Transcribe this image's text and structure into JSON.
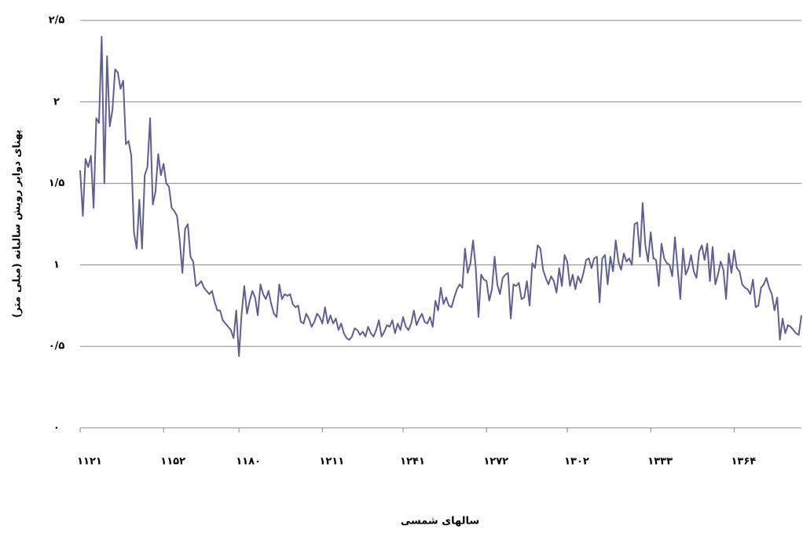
{
  "chart_data": {
    "type": "line",
    "x_label": "سالهای شمسی",
    "y_label": "پهنای دوایر رویش سالیانه (میلی متر)",
    "x": [
      1121,
      1122,
      1123,
      1124,
      1125,
      1126,
      1127,
      1128,
      1129,
      1130,
      1131,
      1132,
      1133,
      1134,
      1135,
      1136,
      1137,
      1138,
      1139,
      1140,
      1141,
      1142,
      1143,
      1144,
      1145,
      1146,
      1147,
      1148,
      1149,
      1150,
      1151,
      1152,
      1153,
      1154,
      1155,
      1156,
      1157,
      1158,
      1159,
      1160,
      1161,
      1162,
      1163,
      1164,
      1165,
      1166,
      1167,
      1168,
      1169,
      1170,
      1171,
      1172,
      1173,
      1174,
      1175,
      1176,
      1177,
      1178,
      1179,
      1180,
      1181,
      1182,
      1183,
      1184,
      1185,
      1186,
      1187,
      1188,
      1189,
      1190,
      1191,
      1192,
      1193,
      1194,
      1195,
      1196,
      1197,
      1198,
      1199,
      1200,
      1201,
      1202,
      1203,
      1204,
      1205,
      1206,
      1207,
      1208,
      1209,
      1210,
      1211,
      1212,
      1213,
      1214,
      1215,
      1216,
      1217,
      1218,
      1219,
      1220,
      1221,
      1222,
      1223,
      1224,
      1225,
      1226,
      1227,
      1228,
      1229,
      1230,
      1231,
      1232,
      1233,
      1234,
      1235,
      1236,
      1237,
      1238,
      1239,
      1240,
      1241,
      1242,
      1243,
      1244,
      1245,
      1246,
      1247,
      1248,
      1249,
      1250,
      1251,
      1252,
      1253,
      1254,
      1255,
      1256,
      1257,
      1258,
      1259,
      1260,
      1261,
      1262,
      1263,
      1264,
      1265,
      1266,
      1267,
      1268,
      1269,
      1270,
      1271,
      1272,
      1273,
      1274,
      1275,
      1276,
      1277,
      1278,
      1279,
      1280,
      1281,
      1282,
      1283,
      1284,
      1285,
      1286,
      1287,
      1288,
      1289,
      1290,
      1291,
      1292,
      1293,
      1294,
      1295,
      1296,
      1297,
      1298,
      1299,
      1300,
      1301,
      1302,
      1303,
      1304,
      1305,
      1306,
      1307,
      1308,
      1309,
      1310,
      1311,
      1312,
      1313,
      1314,
      1315,
      1316,
      1317,
      1318,
      1319,
      1320,
      1321,
      1322,
      1323,
      1324,
      1325,
      1326,
      1327,
      1328,
      1329,
      1330,
      1331,
      1332,
      1333,
      1334,
      1335,
      1336,
      1337,
      1338,
      1339,
      1340,
      1341,
      1342,
      1343,
      1344,
      1345,
      1346,
      1347,
      1348,
      1349,
      1350,
      1351,
      1352,
      1353,
      1354,
      1355,
      1356,
      1357,
      1358,
      1359,
      1360,
      1361,
      1362,
      1363,
      1364,
      1365,
      1366,
      1367,
      1368,
      1369,
      1370,
      1371,
      1372,
      1373,
      1374,
      1375,
      1376,
      1377,
      1378,
      1379,
      1380,
      1381,
      1382,
      1383,
      1384,
      1385,
      1386,
      1387,
      1388,
      1389
    ],
    "series": [
      {
        "color": "#5f5f96",
        "values": [
          1.58,
          1.3,
          1.65,
          1.6,
          1.67,
          1.35,
          1.9,
          1.87,
          2.4,
          1.5,
          2.28,
          1.85,
          1.95,
          2.2,
          2.18,
          2.08,
          2.13,
          1.74,
          1.76,
          1.67,
          1.2,
          1.1,
          1.4,
          1.1,
          1.55,
          1.6,
          1.9,
          1.37,
          1.45,
          1.68,
          1.55,
          1.62,
          1.5,
          1.48,
          1.35,
          1.33,
          1.3,
          1.15,
          0.95,
          1.22,
          1.25,
          1.05,
          1.02,
          0.87,
          0.88,
          0.9,
          0.86,
          0.84,
          0.82,
          0.84,
          0.77,
          0.72,
          0.72,
          0.66,
          0.64,
          0.62,
          0.6,
          0.55,
          0.72,
          0.44,
          0.7,
          0.87,
          0.7,
          0.78,
          0.84,
          0.8,
          0.69,
          0.88,
          0.82,
          0.79,
          0.84,
          0.76,
          0.7,
          0.68,
          0.88,
          0.79,
          0.82,
          0.81,
          0.82,
          0.76,
          0.74,
          0.75,
          0.65,
          0.64,
          0.7,
          0.67,
          0.62,
          0.65,
          0.7,
          0.68,
          0.64,
          0.74,
          0.64,
          0.69,
          0.64,
          0.67,
          0.6,
          0.64,
          0.58,
          0.55,
          0.54,
          0.56,
          0.61,
          0.6,
          0.57,
          0.59,
          0.56,
          0.62,
          0.58,
          0.56,
          0.6,
          0.66,
          0.56,
          0.59,
          0.63,
          0.62,
          0.66,
          0.58,
          0.64,
          0.6,
          0.68,
          0.62,
          0.6,
          0.64,
          0.72,
          0.63,
          0.67,
          0.7,
          0.65,
          0.64,
          0.68,
          0.62,
          0.78,
          0.72,
          0.86,
          0.76,
          0.8,
          0.75,
          0.74,
          0.8,
          0.85,
          0.88,
          0.86,
          1.1,
          0.95,
          1.01,
          1.15,
          0.98,
          0.68,
          0.94,
          0.91,
          0.9,
          0.78,
          0.85,
          1.05,
          0.88,
          0.82,
          0.92,
          0.94,
          0.95,
          0.67,
          0.88,
          0.87,
          0.89,
          0.79,
          0.8,
          0.9,
          0.75,
          1.01,
          0.98,
          1.12,
          1.1,
          0.97,
          0.92,
          0.88,
          0.93,
          0.9,
          0.83,
          0.98,
          0.87,
          1.06,
          1.02,
          0.87,
          0.94,
          0.85,
          0.93,
          0.89,
          0.95,
          1.03,
          1.04,
          0.98,
          1.04,
          1.05,
          0.77,
          1.04,
          1.06,
          0.88,
          1.05,
          0.96,
          1.15,
          1.02,
          0.97,
          1.07,
          1.02,
          1.04,
          1.0,
          1.25,
          1.26,
          1.05,
          1.38,
          1.12,
          1.02,
          1.2,
          1.04,
          1.03,
          0.87,
          1.13,
          1.04,
          1.01,
          1.0,
          0.93,
          1.17,
          0.98,
          0.79,
          1.1,
          0.94,
          0.98,
          1.06,
          0.96,
          0.92,
          1.08,
          1.12,
          1.03,
          1.13,
          0.9,
          1.11,
          0.88,
          0.94,
          1.02,
          0.97,
          0.79,
          1.07,
          0.95,
          1.09,
          0.98,
          0.96,
          0.88,
          0.86,
          0.85,
          0.82,
          0.91,
          0.74,
          0.75,
          0.86,
          0.88,
          0.92,
          0.86,
          0.82,
          0.72,
          0.8,
          0.54,
          0.67,
          0.58,
          0.63,
          0.62,
          0.6,
          0.58,
          0.57,
          0.69
        ]
      }
    ],
    "xlim": [
      1121,
      1389
    ],
    "xticks": [
      {
        "value": 1121,
        "label": "۱۱۲۱"
      },
      {
        "value": 1152,
        "label": "۱۱۵۲"
      },
      {
        "value": 1180,
        "label": "۱۱۸۰"
      },
      {
        "value": 1211,
        "label": "۱۲۱۱"
      },
      {
        "value": 1241,
        "label": "۱۲۴۱"
      },
      {
        "value": 1272,
        "label": "۱۲۷۲"
      },
      {
        "value": 1302,
        "label": "۱۳۰۲"
      },
      {
        "value": 1333,
        "label": "۱۳۳۳"
      },
      {
        "value": 1364,
        "label": "۱۳۶۴"
      }
    ],
    "ylim": [
      0,
      2.5
    ],
    "yticks": [
      {
        "value": 0,
        "label": "۰"
      },
      {
        "value": 0.5,
        "label": "۰/۵"
      },
      {
        "value": 1,
        "label": "۱"
      },
      {
        "value": 1.5,
        "label": "۱/۵"
      },
      {
        "value": 2,
        "label": "۲"
      },
      {
        "value": 2.5,
        "label": "۲/۵"
      }
    ],
    "grid": true
  }
}
